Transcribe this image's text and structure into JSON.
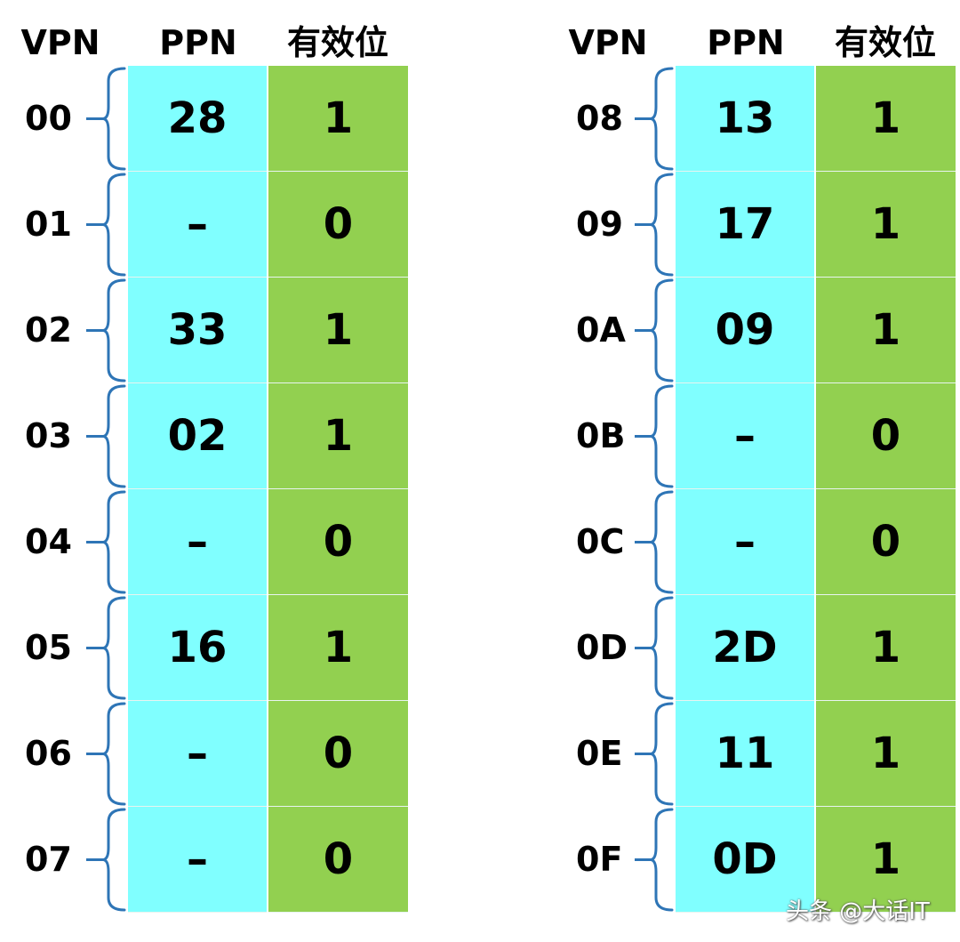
{
  "headers": {
    "vpn": "VPN",
    "ppn": "PPN",
    "valid": "有效位"
  },
  "colors": {
    "ppn_fill": "#80ffff",
    "valid_fill": "#92d050",
    "brace": "#2e75b6"
  },
  "left_table": [
    {
      "vpn": "00",
      "ppn": "28",
      "valid": "1"
    },
    {
      "vpn": "01",
      "ppn": "–",
      "valid": "0"
    },
    {
      "vpn": "02",
      "ppn": "33",
      "valid": "1"
    },
    {
      "vpn": "03",
      "ppn": "02",
      "valid": "1"
    },
    {
      "vpn": "04",
      "ppn": "–",
      "valid": "0"
    },
    {
      "vpn": "05",
      "ppn": "16",
      "valid": "1"
    },
    {
      "vpn": "06",
      "ppn": "–",
      "valid": "0"
    },
    {
      "vpn": "07",
      "ppn": "–",
      "valid": "0"
    }
  ],
  "right_table": [
    {
      "vpn": "08",
      "ppn": "13",
      "valid": "1"
    },
    {
      "vpn": "09",
      "ppn": "17",
      "valid": "1"
    },
    {
      "vpn": "0A",
      "ppn": "09",
      "valid": "1"
    },
    {
      "vpn": "0B",
      "ppn": "–",
      "valid": "0"
    },
    {
      "vpn": "0C",
      "ppn": "–",
      "valid": "0"
    },
    {
      "vpn": "0D",
      "ppn": "2D",
      "valid": "1"
    },
    {
      "vpn": "0E",
      "ppn": "11",
      "valid": "1"
    },
    {
      "vpn": "0F",
      "ppn": "0D",
      "valid": "1"
    }
  ],
  "watermark": "头条 @大话IT"
}
